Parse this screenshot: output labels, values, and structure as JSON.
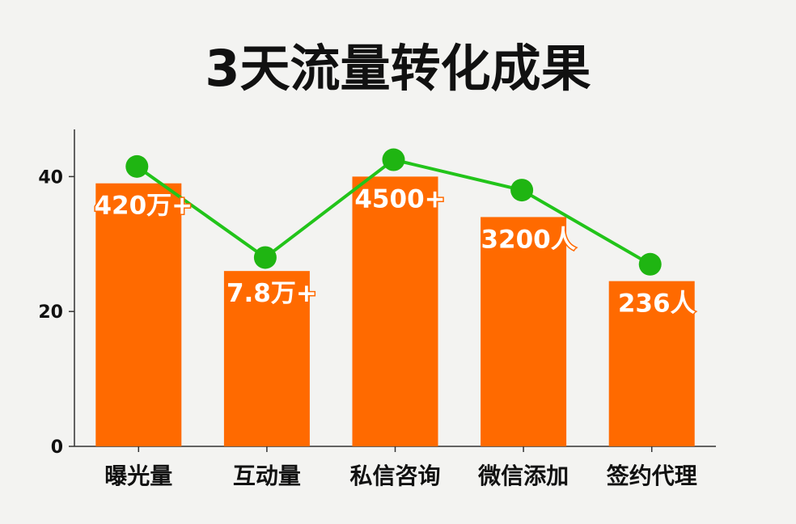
{
  "chart_data": {
    "type": "bar",
    "title": "3天流量转化成果",
    "categories": [
      "曝光量",
      "互动量",
      "私信咨询",
      "微信添加",
      "签约代理"
    ],
    "series": [
      {
        "type": "bar",
        "values": [
          39,
          26,
          40,
          34,
          24.5
        ],
        "data_labels": [
          "420万+",
          "7.8万+",
          "4500+",
          "3200人",
          "236人"
        ]
      },
      {
        "type": "line",
        "values": [
          41.5,
          28,
          42.5,
          38,
          27
        ]
      }
    ],
    "yticks": [
      0,
      20,
      40
    ],
    "ylim": [
      0,
      47
    ],
    "xlabel": "",
    "ylabel": "",
    "grid": false,
    "colors": {
      "bar": "#ff6a00",
      "line": "#22c41a",
      "marker": "#1fb512",
      "axis": "#333333",
      "background": "#f3f3f1"
    }
  }
}
